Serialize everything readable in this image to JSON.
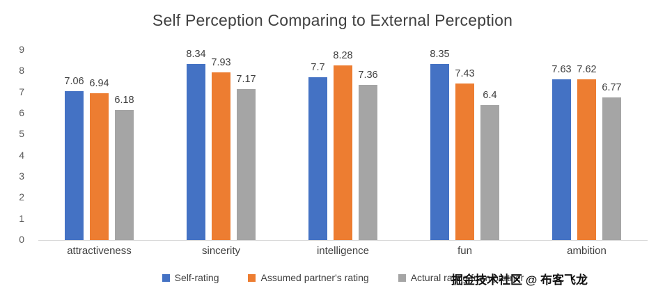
{
  "chart_data": {
    "type": "bar",
    "title": "Self Perception Comparing to External Perception",
    "categories": [
      "attractiveness",
      "sincerity",
      "intelligence",
      "fun",
      "ambition"
    ],
    "series": [
      {
        "name": "Self-rating",
        "color": "#4472C4",
        "values": [
          7.06,
          8.34,
          7.7,
          8.35,
          7.63
        ],
        "labels": [
          "7.06",
          "8.34",
          "7.7",
          "8.35",
          "7.63"
        ]
      },
      {
        "name": "Assumed partner's rating",
        "color": "#ED7D31",
        "values": [
          6.94,
          7.93,
          8.28,
          7.43,
          7.62
        ],
        "labels": [
          "6.94",
          "7.93",
          "8.28",
          "7.43",
          "7.62"
        ]
      },
      {
        "name": "Actural rating from partner",
        "color": "#A5A5A5",
        "values": [
          6.18,
          7.17,
          7.36,
          6.4,
          6.77
        ],
        "labels": [
          "6.18",
          "7.17",
          "7.36",
          "6.4",
          "6.77"
        ]
      }
    ],
    "ylim": [
      0,
      9
    ],
    "ytick_step": 1,
    "grid": false,
    "legend_position": "bottom"
  },
  "watermark": {
    "text": "掘金技术社区 @ 布客飞龙"
  },
  "colors": {
    "axis_line": "#d9d9d9",
    "tick_label": "#595959",
    "data_label": "#404040",
    "title": "#404040"
  }
}
